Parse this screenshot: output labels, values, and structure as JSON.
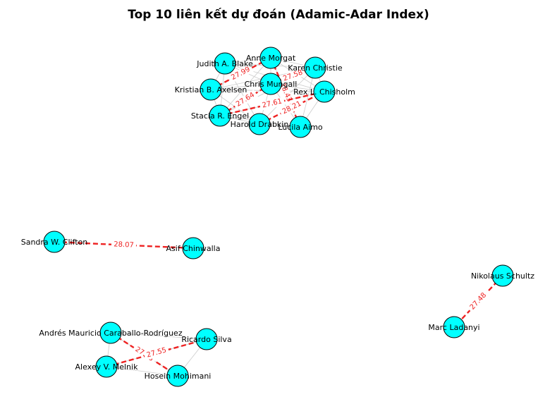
{
  "title": "Top 10 liên kết dự đoán (Adamic-Adar Index)",
  "colors": {
    "node_fill": "#00ffff",
    "node_stroke": "#000000",
    "edge": "#cccccc",
    "predicted": "#ee2222",
    "predicted_label": "#ee2222"
  },
  "nodes": [
    {
      "id": "judith",
      "label": "Judith A. Blake"
    },
    {
      "id": "anne",
      "label": "Anne Morgat"
    },
    {
      "id": "karen",
      "label": "Karen Christie"
    },
    {
      "id": "kristian",
      "label": "Kristian B. Axelsen"
    },
    {
      "id": "chris",
      "label": "Chris Mungall"
    },
    {
      "id": "rex",
      "label": "Rex L. Chisholm"
    },
    {
      "id": "stacia",
      "label": "Stacia R. Engel"
    },
    {
      "id": "harold",
      "label": "Harold Drabkin"
    },
    {
      "id": "lucila",
      "label": "Lucila Aimo"
    },
    {
      "id": "sandra",
      "label": "Sandra W. Clifton"
    },
    {
      "id": "asif",
      "label": "Asif Chinwalla"
    },
    {
      "id": "nikolaus",
      "label": "Nikolaus Schultz"
    },
    {
      "id": "marc",
      "label": "Marc Ladanyi"
    },
    {
      "id": "andres",
      "label": "Andrés Mauricio Caraballo-Rodríguez"
    },
    {
      "id": "ricardo",
      "label": "Ricardo Silva"
    },
    {
      "id": "alexey",
      "label": "Alexey V. Melnik"
    },
    {
      "id": "hosein",
      "label": "Hosein Mohimani"
    }
  ],
  "edges": [
    [
      "judith",
      "anne"
    ],
    [
      "judith",
      "chris"
    ],
    [
      "judith",
      "kristian"
    ],
    [
      "judith",
      "stacia"
    ],
    [
      "judith",
      "karen"
    ],
    [
      "judith",
      "rex"
    ],
    [
      "judith",
      "harold"
    ],
    [
      "anne",
      "karen"
    ],
    [
      "anne",
      "kristian"
    ],
    [
      "anne",
      "chris"
    ],
    [
      "anne",
      "rex"
    ],
    [
      "anne",
      "stacia"
    ],
    [
      "anne",
      "lucila"
    ],
    [
      "karen",
      "chris"
    ],
    [
      "karen",
      "rex"
    ],
    [
      "karen",
      "harold"
    ],
    [
      "karen",
      "stacia"
    ],
    [
      "karen",
      "kristian"
    ],
    [
      "karen",
      "lucila"
    ],
    [
      "kristian",
      "chris"
    ],
    [
      "kristian",
      "stacia"
    ],
    [
      "kristian",
      "harold"
    ],
    [
      "kristian",
      "rex"
    ],
    [
      "chris",
      "rex"
    ],
    [
      "chris",
      "stacia"
    ],
    [
      "chris",
      "harold"
    ],
    [
      "chris",
      "lucila"
    ],
    [
      "rex",
      "lucila"
    ],
    [
      "rex",
      "stacia"
    ],
    [
      "stacia",
      "harold"
    ],
    [
      "stacia",
      "lucila"
    ],
    [
      "harold",
      "lucila"
    ],
    [
      "andres",
      "alexey"
    ],
    [
      "andres",
      "hosein"
    ],
    [
      "alexey",
      "hosein"
    ],
    [
      "alexey",
      "ricardo"
    ],
    [
      "hosein",
      "ricardo"
    ],
    [
      "andres",
      "ricardo"
    ]
  ],
  "predicted_links": [
    {
      "source": "sandra",
      "target": "asif",
      "score": "28.07"
    },
    {
      "source": "nikolaus",
      "target": "marc",
      "score": "27.48"
    },
    {
      "source": "andres",
      "target": "hosein",
      "score": "27.08"
    },
    {
      "source": "alexey",
      "target": "ricardo",
      "score": "27.55"
    },
    {
      "source": "kristian",
      "target": "anne",
      "score": "27.99"
    },
    {
      "source": "anne",
      "target": "lucila",
      "score": "28.43"
    },
    {
      "source": "karen",
      "target": "chris",
      "score": "27.58"
    },
    {
      "source": "stacia",
      "target": "rex",
      "score": "27.61"
    },
    {
      "source": "harold",
      "target": "rex",
      "score": "28.21"
    },
    {
      "source": "chris",
      "target": "stacia",
      "score": "27.64"
    }
  ]
}
